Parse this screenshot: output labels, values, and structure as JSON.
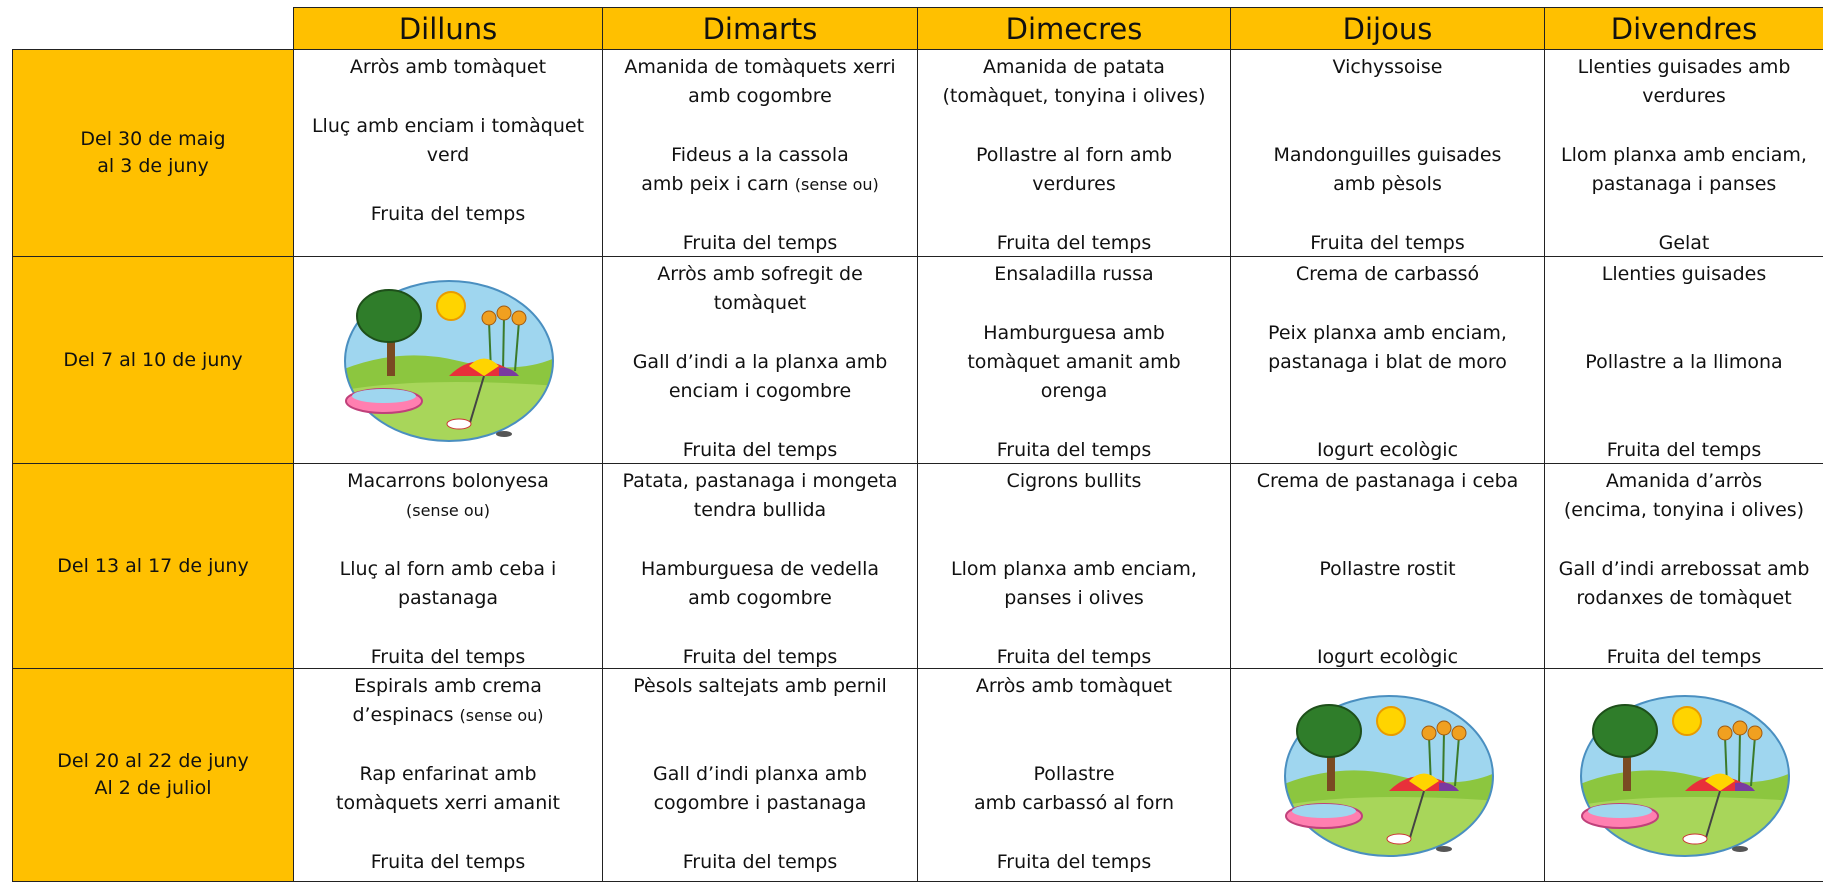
{
  "table": {
    "days": [
      "Dilluns",
      "Dimarts",
      "Dimecres",
      "Dijous",
      "Divendres"
    ],
    "rows": [
      {
        "label": [
          "Del 30 de maig",
          "al 3 de juny"
        ],
        "cells": [
          [
            "Arròs amb tomàquet",
            null,
            "Lluç amb enciam i tomàquet",
            "verd",
            null,
            "Fruita del temps"
          ],
          [
            "Amanida de tomàquets xerri",
            "amb cogombre",
            null,
            "Fideus a la cassola",
            {
              "text": "amb peix i carn ",
              "note": "(sense ou)"
            },
            null,
            "Fruita del temps"
          ],
          [
            "Amanida de patata",
            "(tomàquet, tonyina i olives)",
            null,
            "Pollastre al forn amb",
            "verdures",
            null,
            "Fruita del temps"
          ],
          [
            "Vichyssoise",
            null,
            null,
            "Mandonguilles guisades",
            "amb pèsols",
            null,
            "Fruita del temps"
          ],
          [
            "Llenties guisades amb",
            "verdures",
            null,
            "Llom planxa amb enciam,",
            "pastanaga i panses",
            null,
            "Gelat"
          ]
        ]
      },
      {
        "label": [
          "Del 7 al 10 de juny"
        ],
        "cells": [
          null,
          [
            "Arròs amb sofregit de",
            "tomàquet",
            null,
            "Gall d’indi a la planxa amb",
            "enciam i cogombre",
            null,
            "Fruita del temps"
          ],
          [
            "Ensaladilla russa",
            null,
            "Hamburguesa amb",
            "tomàquet amanit amb",
            "orenga",
            null,
            "Fruita del temps"
          ],
          [
            "Crema de carbassó",
            null,
            "Peix planxa amb enciam,",
            "pastanaga i blat de moro",
            null,
            null,
            "Iogurt ecològic"
          ],
          [
            "Llenties guisades",
            null,
            null,
            "Pollastre a la llimona",
            null,
            null,
            "Fruita del temps"
          ]
        ]
      },
      {
        "label": [
          "Del 13 al  17 de juny"
        ],
        "cells": [
          [
            "Macarrons bolonyesa",
            {
              "note": "(sense ou)"
            },
            null,
            "Lluç al forn amb ceba i",
            "pastanaga",
            null,
            "Fruita del temps"
          ],
          [
            "Patata, pastanaga i mongeta",
            "tendra bullida",
            null,
            "Hamburguesa de vedella",
            "amb cogombre",
            null,
            "Fruita del temps"
          ],
          [
            "Cigrons bullits",
            null,
            null,
            "Llom planxa amb enciam,",
            "panses i olives",
            null,
            "Fruita del temps"
          ],
          [
            "Crema de pastanaga i ceba",
            null,
            null,
            "Pollastre rostit",
            null,
            null,
            "Iogurt ecològic"
          ],
          [
            "Amanida d’arròs",
            "(encima, tonyina  i olives)",
            null,
            "Gall d’indi  arrebossat amb",
            "rodanxes de tomàquet",
            null,
            "Fruita del temps"
          ]
        ]
      },
      {
        "label": [
          "Del 20  al 22 de juny",
          "Al 2 de juliol"
        ],
        "cells": [
          [
            "Espirals amb crema",
            {
              "text": "d’espinacs ",
              "note": "(sense ou)"
            },
            null,
            "Rap enfarinat amb",
            "tomàquets xerri amanit",
            null,
            "Fruita del temps"
          ],
          [
            "Pèsols saltejats amb pernil",
            null,
            null,
            "Gall d’indi planxa amb",
            "cogombre i pastanaga",
            null,
            "Fruita del temps"
          ],
          [
            "Arròs amb tomàquet",
            null,
            null,
            "Pollastre",
            "amb carbassó al forn",
            null,
            "Fruita del temps"
          ],
          null,
          null
        ]
      }
    ]
  }
}
